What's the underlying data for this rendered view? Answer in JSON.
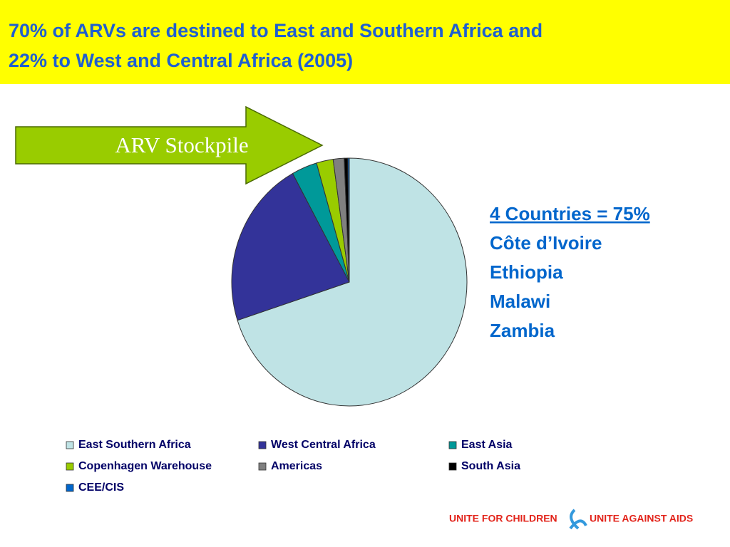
{
  "chart_data": {
    "type": "pie",
    "title": [
      "70% of ARVs are destined to East and Southern Africa and",
      "22% to West and Central Africa (2005)"
    ],
    "annotation": "ARV Stockpile",
    "callout": {
      "heading": "4 Countries = 75%",
      "items": [
        "Côte d’Ivoire",
        "Ethiopia",
        "Malawi",
        "Zambia"
      ]
    },
    "categories": [
      "East Southern Africa",
      "West Central Africa",
      "East Asia",
      "Copenhagen Warehouse",
      "Americas",
      "South Asia",
      "CEE/CIS"
    ],
    "values": [
      70,
      22,
      3.5,
      2.3,
      1.5,
      0.5,
      0.2
    ],
    "colors": [
      "#bfe3e5",
      "#333399",
      "#009999",
      "#99cc00",
      "#808080",
      "#000000",
      "#0066cc"
    ]
  },
  "footer": {
    "left": "UNITE FOR CHILDREN",
    "right": "UNITE AGAINST AIDS"
  }
}
